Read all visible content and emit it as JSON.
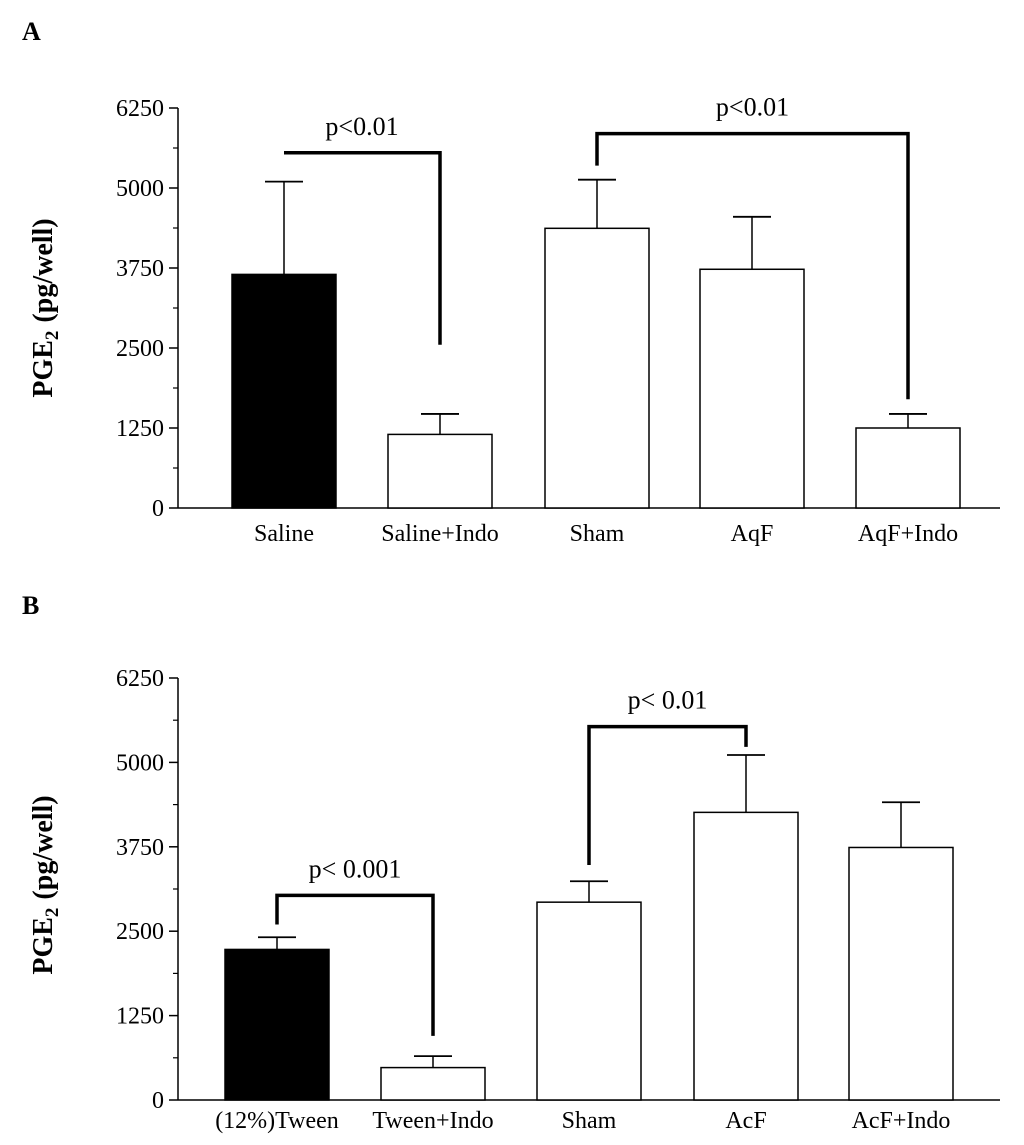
{
  "chart_data": [
    {
      "panel": "A",
      "type": "bar",
      "ylabel_main": "PGE",
      "ylabel_sub": "2",
      "ylabel_unit": "(pg/well)",
      "ylim": [
        0,
        6250
      ],
      "yticks": [
        0,
        1250,
        2500,
        3750,
        5000,
        6250
      ],
      "categories": [
        "Saline",
        "Saline+Indo",
        "Sham",
        "AqF",
        "AqF+Indo"
      ],
      "values": [
        3650,
        1150,
        4370,
        3730,
        1250
      ],
      "errors": [
        1450,
        320,
        760,
        820,
        220
      ],
      "fills": [
        "#000000",
        "#ffffff",
        "#ffffff",
        "#ffffff",
        "#ffffff"
      ],
      "significance": [
        {
          "from": 0,
          "to": 1,
          "label": "p<0.01",
          "level": 5550,
          "from_end": 5550,
          "to_end": 2550
        },
        {
          "from": 2,
          "to": 4,
          "label": "p<0.01",
          "level": 5850,
          "from_end": 5350,
          "to_end": 1700
        }
      ]
    },
    {
      "panel": "B",
      "type": "bar",
      "ylabel_main": "PGE",
      "ylabel_sub": "2",
      "ylabel_unit": "(pg/well)",
      "ylim": [
        0,
        6250
      ],
      "yticks": [
        0,
        1250,
        2500,
        3750,
        5000,
        6250
      ],
      "categories": [
        "(12%)Tween",
        "Tween+Indo",
        "Sham",
        "AcF",
        "AcF+Indo"
      ],
      "values": [
        2230,
        480,
        2930,
        4260,
        3740
      ],
      "errors": [
        180,
        170,
        310,
        850,
        670
      ],
      "fills": [
        "#000000",
        "#ffffff",
        "#ffffff",
        "#ffffff",
        "#ffffff"
      ],
      "significance": [
        {
          "from": 0,
          "to": 1,
          "label": "p< 0.001",
          "level": 3030,
          "from_end": 2600,
          "to_end": 950
        },
        {
          "from": 2,
          "to": 3,
          "label": "p< 0.01",
          "level": 5530,
          "from_end": 3480,
          "to_end": 5230
        }
      ]
    }
  ]
}
